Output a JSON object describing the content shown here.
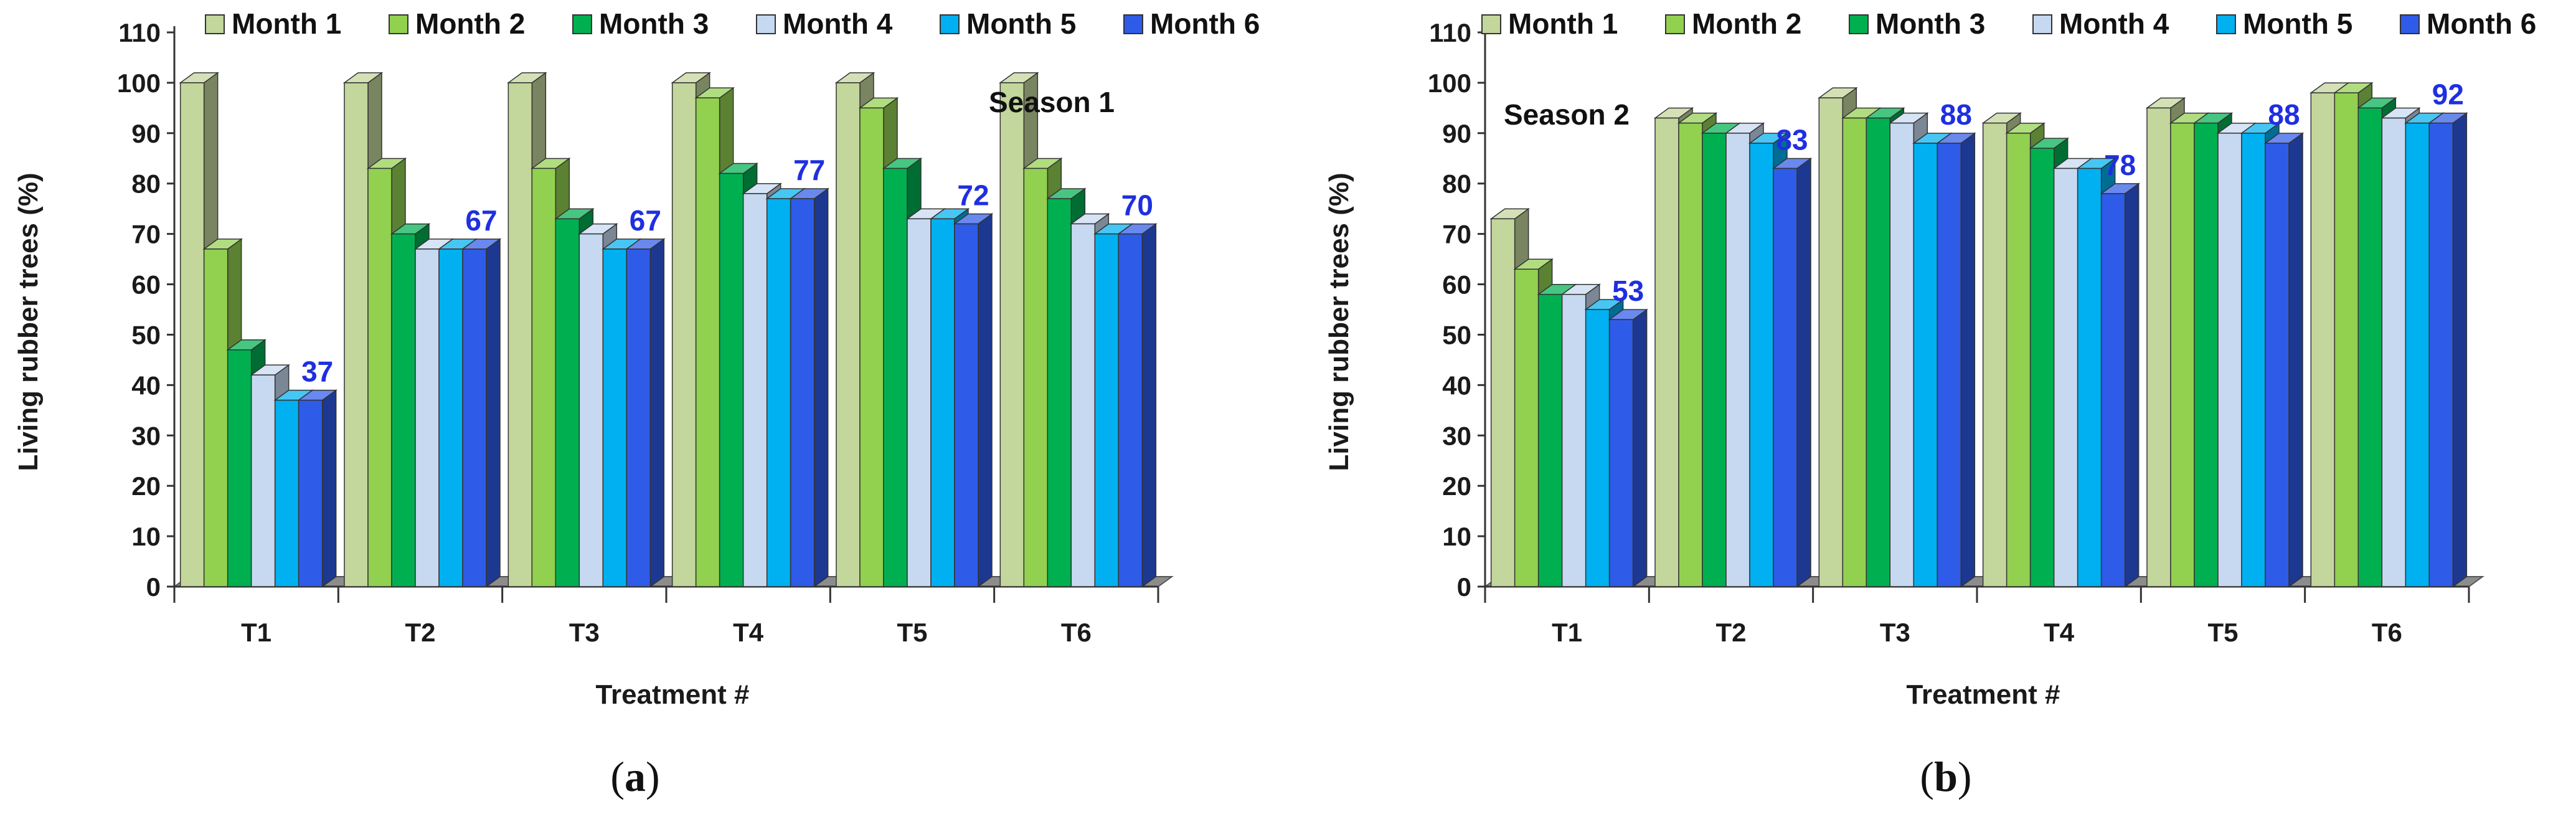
{
  "series_names": [
    "Month 1",
    "Month 2",
    "Month 3",
    "Month 4",
    "Month 5",
    "Month 6"
  ],
  "series_colors": [
    "#c3d69b",
    "#92d050",
    "#00b050",
    "#c6d9f1",
    "#00b0f0",
    "#2e5be8"
  ],
  "chart_data": [
    {
      "type": "bar",
      "panel_label": "a",
      "annotation": "Season 1",
      "title": "",
      "xlabel": "Treatment #",
      "ylabel": "Living rubber trees (%)",
      "ylim": [
        0,
        110
      ],
      "yticks": [
        0,
        10,
        20,
        30,
        40,
        50,
        60,
        70,
        80,
        90,
        100,
        110
      ],
      "categories": [
        "T1",
        "T2",
        "T3",
        "T4",
        "T5",
        "T6"
      ],
      "series": [
        {
          "name": "Month 1",
          "values": [
            100,
            100,
            100,
            100,
            100,
            100
          ]
        },
        {
          "name": "Month 2",
          "values": [
            67,
            83,
            83,
            97,
            95,
            83
          ]
        },
        {
          "name": "Month 3",
          "values": [
            47,
            70,
            73,
            82,
            83,
            77
          ]
        },
        {
          "name": "Month 4",
          "values": [
            42,
            67,
            70,
            78,
            73,
            72
          ]
        },
        {
          "name": "Month 5",
          "values": [
            37,
            67,
            67,
            77,
            73,
            70
          ]
        },
        {
          "name": "Month 6",
          "values": [
            37,
            67,
            67,
            77,
            72,
            70
          ]
        }
      ],
      "data_labels": [
        "37",
        "67",
        "67",
        "77",
        "72",
        "70"
      ],
      "legend": "top"
    },
    {
      "type": "bar",
      "panel_label": "b",
      "annotation": "Season 2",
      "title": "",
      "xlabel": "Treatment #",
      "ylabel": "Living rubber trees (%)",
      "ylim": [
        0,
        110
      ],
      "yticks": [
        0,
        10,
        20,
        30,
        40,
        50,
        60,
        70,
        80,
        90,
        100,
        110
      ],
      "categories": [
        "T1",
        "T2",
        "T3",
        "T4",
        "T5",
        "T6"
      ],
      "series": [
        {
          "name": "Month 1",
          "values": [
            73,
            93,
            97,
            92,
            95,
            98
          ]
        },
        {
          "name": "Month 2",
          "values": [
            63,
            92,
            93,
            90,
            92,
            98
          ]
        },
        {
          "name": "Month 3",
          "values": [
            58,
            90,
            93,
            87,
            92,
            95
          ]
        },
        {
          "name": "Month 4",
          "values": [
            58,
            90,
            92,
            83,
            90,
            93
          ]
        },
        {
          "name": "Month 5",
          "values": [
            55,
            88,
            88,
            83,
            90,
            92
          ]
        },
        {
          "name": "Month 6",
          "values": [
            53,
            83,
            88,
            78,
            88,
            92
          ]
        }
      ],
      "data_labels": [
        "53",
        "83",
        "88",
        "78",
        "88",
        "92"
      ],
      "legend": "top"
    }
  ]
}
